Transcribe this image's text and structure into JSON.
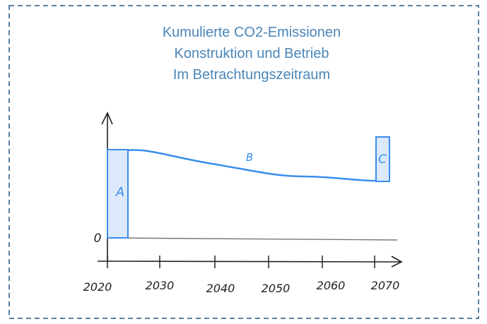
{
  "title": [
    "Kumulierte CO2-Emissionen",
    "Konstruktion und Betrieb",
    "Im Betrachtungszeitraum"
  ],
  "y_label": "0",
  "x_labels": [
    "2020",
    "2030",
    "2040",
    "2050",
    "2060",
    "2070"
  ],
  "regions": [
    {
      "label": "A"
    },
    {
      "label": "B"
    },
    {
      "label": "C"
    }
  ]
}
